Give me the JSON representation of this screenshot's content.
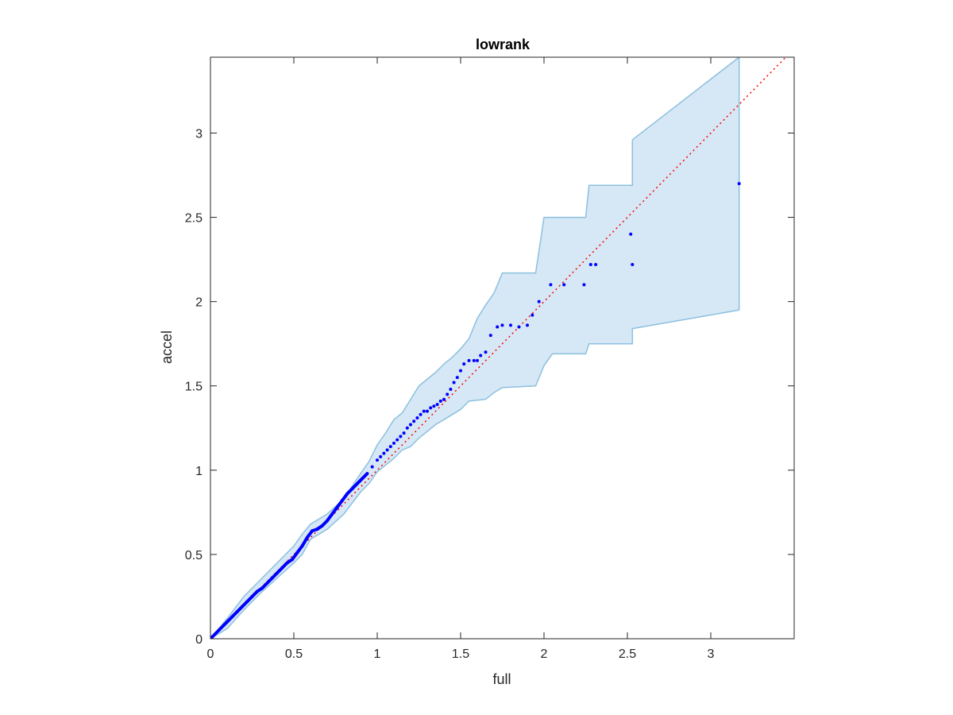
{
  "chart_data": {
    "type": "scatter",
    "title": "lowrank",
    "xlabel": "full",
    "ylabel": "accel",
    "xlim": [
      0,
      3.5
    ],
    "ylim": [
      0,
      3.45
    ],
    "xticks": [
      0,
      0.5,
      1,
      1.5,
      2,
      2.5,
      3
    ],
    "xtick_labels": [
      "0",
      "0.5",
      "1",
      "1.5",
      "2",
      "2.5",
      "3"
    ],
    "yticks": [
      0,
      0.5,
      1,
      1.5,
      2,
      2.5,
      3
    ],
    "ytick_labels": [
      "0",
      "0.5",
      "1",
      "1.5",
      "2",
      "2.5",
      "3"
    ],
    "grid": false,
    "colors": {
      "points": "#0000ff",
      "reference_line": "#ff0000",
      "band_fill": "#d6e7f5",
      "band_edge": "#8cc0de",
      "axes": "#262626"
    },
    "reference_line": {
      "style": "dotted",
      "x": [
        0,
        3.5
      ],
      "y": [
        0,
        3.5
      ]
    },
    "confidence_band": {
      "upper": [
        [
          0,
          0
        ],
        [
          0.1,
          0.12
        ],
        [
          0.2,
          0.25
        ],
        [
          0.3,
          0.35
        ],
        [
          0.4,
          0.45
        ],
        [
          0.5,
          0.55
        ],
        [
          0.55,
          0.62
        ],
        [
          0.6,
          0.68
        ],
        [
          0.7,
          0.74
        ],
        [
          0.8,
          0.83
        ],
        [
          0.9,
          0.98
        ],
        [
          0.95,
          1.05
        ],
        [
          1.0,
          1.15
        ],
        [
          1.05,
          1.22
        ],
        [
          1.1,
          1.3
        ],
        [
          1.15,
          1.34
        ],
        [
          1.2,
          1.42
        ],
        [
          1.25,
          1.5
        ],
        [
          1.3,
          1.54
        ],
        [
          1.35,
          1.58
        ],
        [
          1.4,
          1.63
        ],
        [
          1.45,
          1.67
        ],
        [
          1.5,
          1.72
        ],
        [
          1.55,
          1.78
        ],
        [
          1.6,
          1.9
        ],
        [
          1.65,
          1.98
        ],
        [
          1.7,
          2.05
        ],
        [
          1.75,
          2.17
        ],
        [
          1.95,
          2.17
        ],
        [
          2.0,
          2.5
        ],
        [
          2.25,
          2.5
        ],
        [
          2.27,
          2.69
        ],
        [
          2.53,
          2.69
        ],
        [
          2.53,
          2.96
        ],
        [
          3.17,
          3.45
        ]
      ],
      "lower": [
        [
          0,
          0
        ],
        [
          0.1,
          0.06
        ],
        [
          0.2,
          0.17
        ],
        [
          0.3,
          0.27
        ],
        [
          0.4,
          0.36
        ],
        [
          0.5,
          0.45
        ],
        [
          0.55,
          0.5
        ],
        [
          0.6,
          0.59
        ],
        [
          0.7,
          0.65
        ],
        [
          0.8,
          0.74
        ],
        [
          0.9,
          0.87
        ],
        [
          0.95,
          0.92
        ],
        [
          1.0,
          0.99
        ],
        [
          1.05,
          1.03
        ],
        [
          1.1,
          1.07
        ],
        [
          1.15,
          1.12
        ],
        [
          1.2,
          1.14
        ],
        [
          1.25,
          1.19
        ],
        [
          1.3,
          1.23
        ],
        [
          1.35,
          1.27
        ],
        [
          1.4,
          1.3
        ],
        [
          1.45,
          1.33
        ],
        [
          1.5,
          1.36
        ],
        [
          1.55,
          1.41
        ],
        [
          1.65,
          1.42
        ],
        [
          1.7,
          1.46
        ],
        [
          1.75,
          1.49
        ],
        [
          1.95,
          1.5
        ],
        [
          2.0,
          1.62
        ],
        [
          2.05,
          1.69
        ],
        [
          2.25,
          1.69
        ],
        [
          2.27,
          1.75
        ],
        [
          2.53,
          1.75
        ],
        [
          2.53,
          1.84
        ],
        [
          3.17,
          1.95
        ]
      ]
    },
    "series": [
      {
        "x": [
          0.01,
          0.03,
          0.05,
          0.08,
          0.1,
          0.13,
          0.16,
          0.19,
          0.22,
          0.25,
          0.28,
          0.31,
          0.34,
          0.37,
          0.4,
          0.43,
          0.46,
          0.49,
          0.52,
          0.55,
          0.58,
          0.61,
          0.64,
          0.67,
          0.7,
          0.73,
          0.76,
          0.79,
          0.82,
          0.85,
          0.88,
          0.91,
          0.94,
          0.97,
          1.0,
          1.02,
          1.04,
          1.06,
          1.08,
          1.1,
          1.12,
          1.14,
          1.16,
          1.18,
          1.2,
          1.22,
          1.24,
          1.26,
          1.28,
          1.3,
          1.32,
          1.34,
          1.36,
          1.38,
          1.4,
          1.42,
          1.44,
          1.46,
          1.48,
          1.5,
          1.52,
          1.55,
          1.58,
          1.6,
          1.62,
          1.65,
          1.68,
          1.72,
          1.75,
          1.8,
          1.85,
          1.9,
          1.93,
          1.97,
          2.04,
          2.12,
          2.24,
          2.28,
          2.31,
          2.52,
          2.53,
          3.17
        ],
        "y": [
          0.01,
          0.03,
          0.05,
          0.08,
          0.1,
          0.13,
          0.16,
          0.19,
          0.22,
          0.25,
          0.28,
          0.3,
          0.33,
          0.36,
          0.39,
          0.42,
          0.45,
          0.47,
          0.51,
          0.55,
          0.6,
          0.64,
          0.65,
          0.67,
          0.7,
          0.74,
          0.78,
          0.82,
          0.86,
          0.89,
          0.92,
          0.95,
          0.98,
          1.02,
          1.06,
          1.08,
          1.1,
          1.12,
          1.14,
          1.16,
          1.18,
          1.2,
          1.22,
          1.25,
          1.27,
          1.29,
          1.31,
          1.33,
          1.35,
          1.35,
          1.37,
          1.38,
          1.39,
          1.41,
          1.42,
          1.45,
          1.48,
          1.52,
          1.55,
          1.59,
          1.63,
          1.65,
          1.65,
          1.65,
          1.68,
          1.7,
          1.8,
          1.85,
          1.86,
          1.86,
          1.85,
          1.86,
          1.92,
          2.0,
          2.1,
          2.1,
          2.1,
          2.22,
          2.22,
          2.4,
          2.22,
          2.7
        ]
      }
    ]
  }
}
